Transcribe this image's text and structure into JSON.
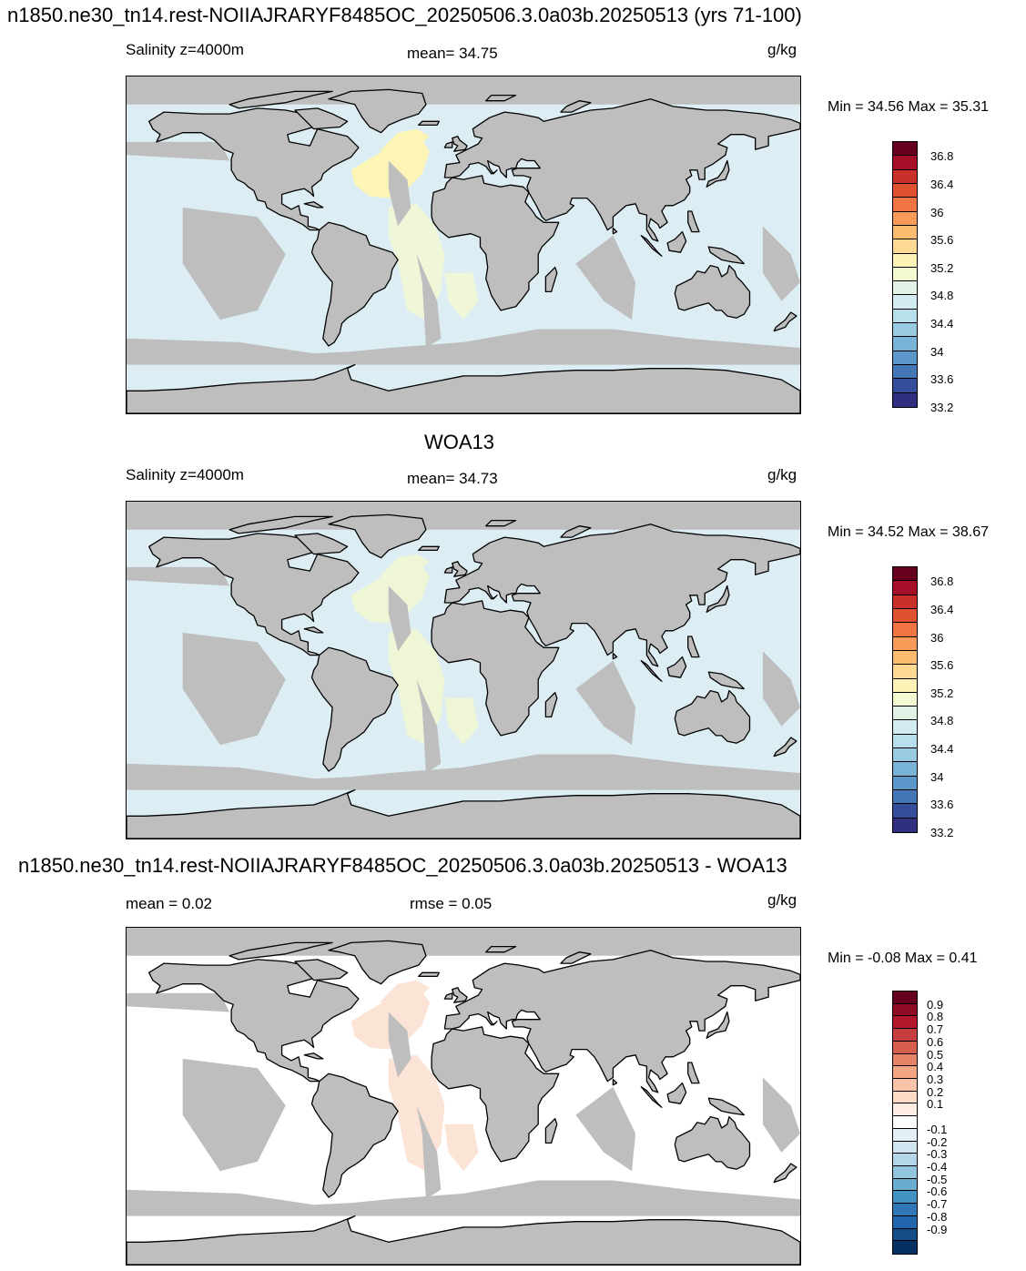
{
  "panels": [
    {
      "title": "n1850.ne30_tn14.rest-NOIIAJRARYF8485OC_20250506.3.0a03b.20250513 (yrs 71-100)",
      "left_label": "Salinity z=4000m",
      "center_label": "mean=  34.75",
      "units": "g/kg",
      "minmax": "Min =  34.56 Max =  35.31",
      "colorbar": {
        "labels": [
          "36.8",
          "36.4",
          "36",
          "35.6",
          "35.2",
          "34.8",
          "34.4",
          "34",
          "33.6",
          "33.2"
        ],
        "colors": [
          "#67001f",
          "#a50f28",
          "#c9302a",
          "#e0512f",
          "#f07543",
          "#f89a58",
          "#fcbc70",
          "#fdd993",
          "#fef3b6",
          "#f5f9d0",
          "#e1f1e6",
          "#d3ecf2",
          "#b7dfec",
          "#98cbe2",
          "#79b3d7",
          "#5b98c9",
          "#4477b8",
          "#354e9a",
          "#313080"
        ]
      },
      "map_fill": "#dcedf4",
      "highlight_fill": "#fcf5b6",
      "highlight2_fill": "#eff7d8"
    },
    {
      "title": "WOA13",
      "left_label": "Salinity z=4000m",
      "center_label": "mean=  34.73",
      "units": "g/kg",
      "minmax": "Min =  34.52 Max =  38.67",
      "colorbar": {
        "labels": [
          "36.8",
          "36.4",
          "36",
          "35.6",
          "35.2",
          "34.8",
          "34.4",
          "34",
          "33.6",
          "33.2"
        ],
        "colors": [
          "#67001f",
          "#a50f28",
          "#c9302a",
          "#e0512f",
          "#f07543",
          "#f89a58",
          "#fcbc70",
          "#fdd993",
          "#fef3b6",
          "#f5f9d0",
          "#e1f1e6",
          "#d3ecf2",
          "#b7dfec",
          "#98cbe2",
          "#79b3d7",
          "#5b98c9",
          "#4477b8",
          "#354e9a",
          "#313080"
        ]
      },
      "map_fill": "#dcedf4",
      "highlight_fill": "#eef6d6",
      "highlight2_fill": "#eef6d6"
    },
    {
      "title": "n1850.ne30_tn14.rest-NOIIAJRARYF8485OC_20250506.3.0a03b.20250513 - WOA13",
      "left_label": "mean =   0.02",
      "center_label": "rmse =   0.05",
      "units": "g/kg",
      "minmax": "Min =  -0.08 Max =   0.41",
      "colorbar": {
        "labels": [
          "0.9",
          "0.8",
          "0.7",
          "0.6",
          "0.5",
          "0.4",
          "0.3",
          "0.2",
          "0.1",
          "-0.1",
          "-0.2",
          "-0.3",
          "-0.4",
          "-0.5",
          "-0.6",
          "-0.7",
          "-0.8",
          "-0.9"
        ],
        "colors": [
          "#67001f",
          "#8f0c25",
          "#b2182b",
          "#c53e3d",
          "#d6604d",
          "#e58368",
          "#f4a582",
          "#f9c4a9",
          "#fddbc7",
          "#fcece3",
          "#ffffff",
          "#e3eef5",
          "#d1e5f0",
          "#b4d6e8",
          "#92c5de",
          "#6aabd0",
          "#4393c3",
          "#3078b5",
          "#2166ac",
          "#154d89",
          "#053061"
        ]
      },
      "map_fill": "#ffffff",
      "highlight_fill": "#fbe3d5",
      "highlight2_fill": "#fbe3d5"
    }
  ]
}
